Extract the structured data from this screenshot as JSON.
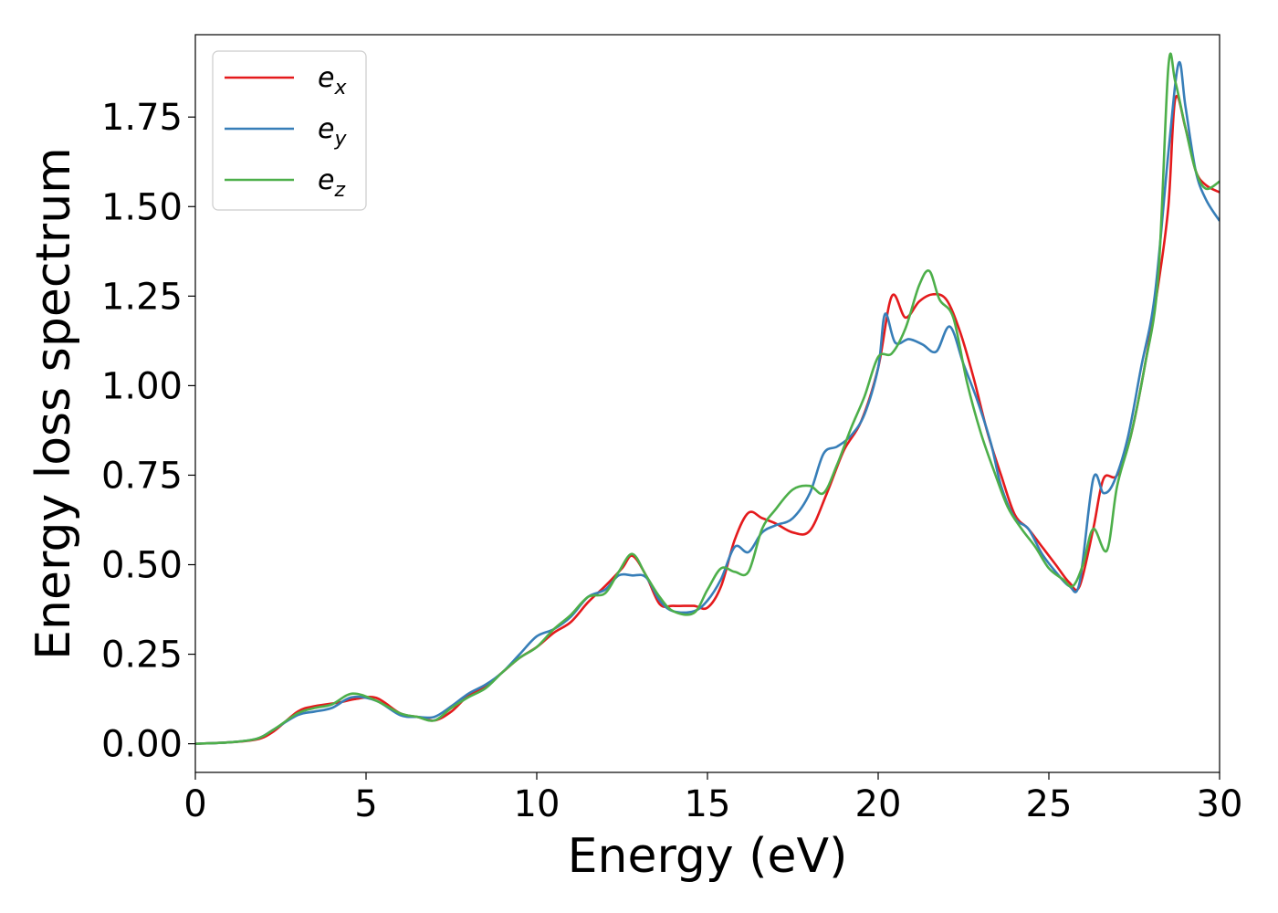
{
  "chart_data": {
    "type": "line",
    "xlabel": "Energy (eV)",
    "ylabel": "Energy loss spectrum",
    "xlim": [
      0,
      30
    ],
    "ylim": [
      -0.08,
      1.98
    ],
    "xticks": [
      0,
      5,
      10,
      15,
      20,
      25,
      30
    ],
    "xtick_labels": [
      "0",
      "5",
      "10",
      "15",
      "20",
      "25",
      "30"
    ],
    "yticks": [
      0.0,
      0.25,
      0.5,
      0.75,
      1.0,
      1.25,
      1.5,
      1.75
    ],
    "ytick_labels": [
      "0.00",
      "0.25",
      "0.50",
      "0.75",
      "1.00",
      "1.25",
      "1.50",
      "1.75"
    ],
    "grid": false,
    "legend_position": "top-left",
    "series": [
      {
        "name": "e_x",
        "base": "e",
        "sub": "x",
        "color": "#e41a1c",
        "x": [
          0,
          1,
          1.8,
          2.3,
          3.0,
          3.5,
          4.2,
          4.7,
          5.3,
          6.0,
          6.5,
          7.0,
          7.5,
          8.0,
          8.5,
          9.0,
          9.5,
          10.0,
          10.5,
          11.0,
          11.5,
          12.0,
          12.5,
          12.8,
          13.2,
          13.6,
          14.0,
          14.6,
          15.0,
          15.4,
          15.8,
          16.2,
          16.6,
          17.0,
          17.5,
          18.0,
          18.5,
          19.0,
          19.5,
          20.0,
          20.4,
          20.8,
          21.2,
          21.6,
          22.0,
          22.4,
          22.8,
          23.2,
          23.6,
          24.0,
          24.4,
          24.8,
          25.2,
          25.6,
          25.9,
          26.3,
          26.6,
          27.0,
          27.4,
          27.8,
          28.2,
          28.5,
          28.7,
          29.0,
          29.3,
          29.6,
          30.0
        ],
        "y": [
          0.0,
          0.004,
          0.012,
          0.035,
          0.09,
          0.105,
          0.115,
          0.125,
          0.128,
          0.085,
          0.075,
          0.065,
          0.09,
          0.135,
          0.16,
          0.2,
          0.24,
          0.27,
          0.31,
          0.34,
          0.395,
          0.44,
          0.49,
          0.525,
          0.47,
          0.39,
          0.385,
          0.385,
          0.38,
          0.44,
          0.57,
          0.645,
          0.63,
          0.615,
          0.59,
          0.595,
          0.7,
          0.82,
          0.9,
          1.05,
          1.25,
          1.19,
          1.235,
          1.255,
          1.24,
          1.15,
          1.02,
          0.87,
          0.75,
          0.64,
          0.6,
          0.55,
          0.5,
          0.45,
          0.44,
          0.6,
          0.74,
          0.75,
          0.86,
          1.05,
          1.28,
          1.5,
          1.8,
          1.72,
          1.6,
          1.56,
          1.54
        ]
      },
      {
        "name": "e_y",
        "base": "e",
        "sub": "y",
        "color": "#377eb8",
        "x": [
          0,
          1,
          1.8,
          2.3,
          3.0,
          3.5,
          4.0,
          4.6,
          5.3,
          6.0,
          6.5,
          7.0,
          7.5,
          8.0,
          8.5,
          9.0,
          9.5,
          10.0,
          10.5,
          11.0,
          11.5,
          12.0,
          12.4,
          12.8,
          13.2,
          13.6,
          14.0,
          14.6,
          15.0,
          15.4,
          15.8,
          16.2,
          16.6,
          17.0,
          17.5,
          18.0,
          18.4,
          18.8,
          19.2,
          19.6,
          20.0,
          20.2,
          20.5,
          20.9,
          21.3,
          21.7,
          22.1,
          22.5,
          22.9,
          23.3,
          23.6,
          24.0,
          24.4,
          24.8,
          25.2,
          25.6,
          25.9,
          26.3,
          26.6,
          26.9,
          27.3,
          27.7,
          28.1,
          28.5,
          28.8,
          29.0,
          29.3,
          29.6,
          30.0
        ],
        "y": [
          0.0,
          0.004,
          0.014,
          0.04,
          0.08,
          0.09,
          0.1,
          0.13,
          0.12,
          0.08,
          0.075,
          0.075,
          0.105,
          0.14,
          0.165,
          0.2,
          0.25,
          0.3,
          0.32,
          0.355,
          0.41,
          0.43,
          0.47,
          0.47,
          0.465,
          0.4,
          0.37,
          0.37,
          0.4,
          0.46,
          0.55,
          0.535,
          0.59,
          0.61,
          0.63,
          0.7,
          0.81,
          0.83,
          0.86,
          0.92,
          1.05,
          1.2,
          1.12,
          1.13,
          1.115,
          1.095,
          1.165,
          1.06,
          0.96,
          0.84,
          0.72,
          0.63,
          0.6,
          0.53,
          0.48,
          0.44,
          0.45,
          0.74,
          0.7,
          0.73,
          0.85,
          1.05,
          1.25,
          1.65,
          1.9,
          1.78,
          1.6,
          1.52,
          1.46
        ]
      },
      {
        "name": "e_z",
        "base": "e",
        "sub": "z",
        "color": "#4daf4a",
        "x": [
          0,
          1,
          1.8,
          2.3,
          3.0,
          3.5,
          4.0,
          4.6,
          5.3,
          6.0,
          6.5,
          7.0,
          7.5,
          8.0,
          8.5,
          9.0,
          9.5,
          10.0,
          10.5,
          11.0,
          11.5,
          12.0,
          12.4,
          12.8,
          13.2,
          13.6,
          14.0,
          14.6,
          15.0,
          15.4,
          15.8,
          16.2,
          16.6,
          17.0,
          17.5,
          18.0,
          18.4,
          18.8,
          19.2,
          19.6,
          20.0,
          20.4,
          20.8,
          21.2,
          21.5,
          21.8,
          22.2,
          22.6,
          23.0,
          23.4,
          23.8,
          24.2,
          24.6,
          25.0,
          25.4,
          25.7,
          26.0,
          26.3,
          26.7,
          27.0,
          27.4,
          27.8,
          28.2,
          28.5,
          28.7,
          29.0,
          29.3,
          29.6,
          30.0
        ],
        "y": [
          0.0,
          0.004,
          0.014,
          0.04,
          0.085,
          0.1,
          0.11,
          0.14,
          0.12,
          0.085,
          0.075,
          0.065,
          0.1,
          0.13,
          0.155,
          0.2,
          0.24,
          0.27,
          0.32,
          0.36,
          0.41,
          0.42,
          0.48,
          0.53,
          0.47,
          0.41,
          0.37,
          0.365,
          0.43,
          0.49,
          0.48,
          0.48,
          0.6,
          0.655,
          0.71,
          0.72,
          0.7,
          0.78,
          0.88,
          0.97,
          1.08,
          1.09,
          1.16,
          1.28,
          1.32,
          1.24,
          1.19,
          1.01,
          0.87,
          0.76,
          0.66,
          0.6,
          0.55,
          0.49,
          0.46,
          0.44,
          0.5,
          0.6,
          0.54,
          0.72,
          0.86,
          1.05,
          1.3,
          1.89,
          1.85,
          1.72,
          1.6,
          1.55,
          1.57
        ]
      }
    ]
  }
}
